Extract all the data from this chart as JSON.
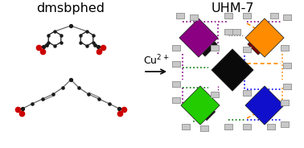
{
  "title_left": "dmsbphed",
  "title_right": "UHM-7",
  "background_color": "#ffffff",
  "title_fontsize": 11.5,
  "arrow_fontsize": 9,
  "colors_polyhedra": {
    "purple": "#8B0082",
    "orange": "#FF8C00",
    "green": "#22CC00",
    "blue": "#1010CC",
    "black": "#0a0a0a",
    "darkred": "#7B0000",
    "gray_face": "#C8C8C8",
    "gray_edge": "#909090"
  },
  "colors_linkers": {
    "purple": "#800080",
    "orange": "#FF8C00",
    "green": "#007700",
    "blue": "#0000EE",
    "gray": "#808080"
  },
  "mol_carbon": "#1a1a1a",
  "mol_oxygen": "#cc0000",
  "mol_bond": "#666666"
}
